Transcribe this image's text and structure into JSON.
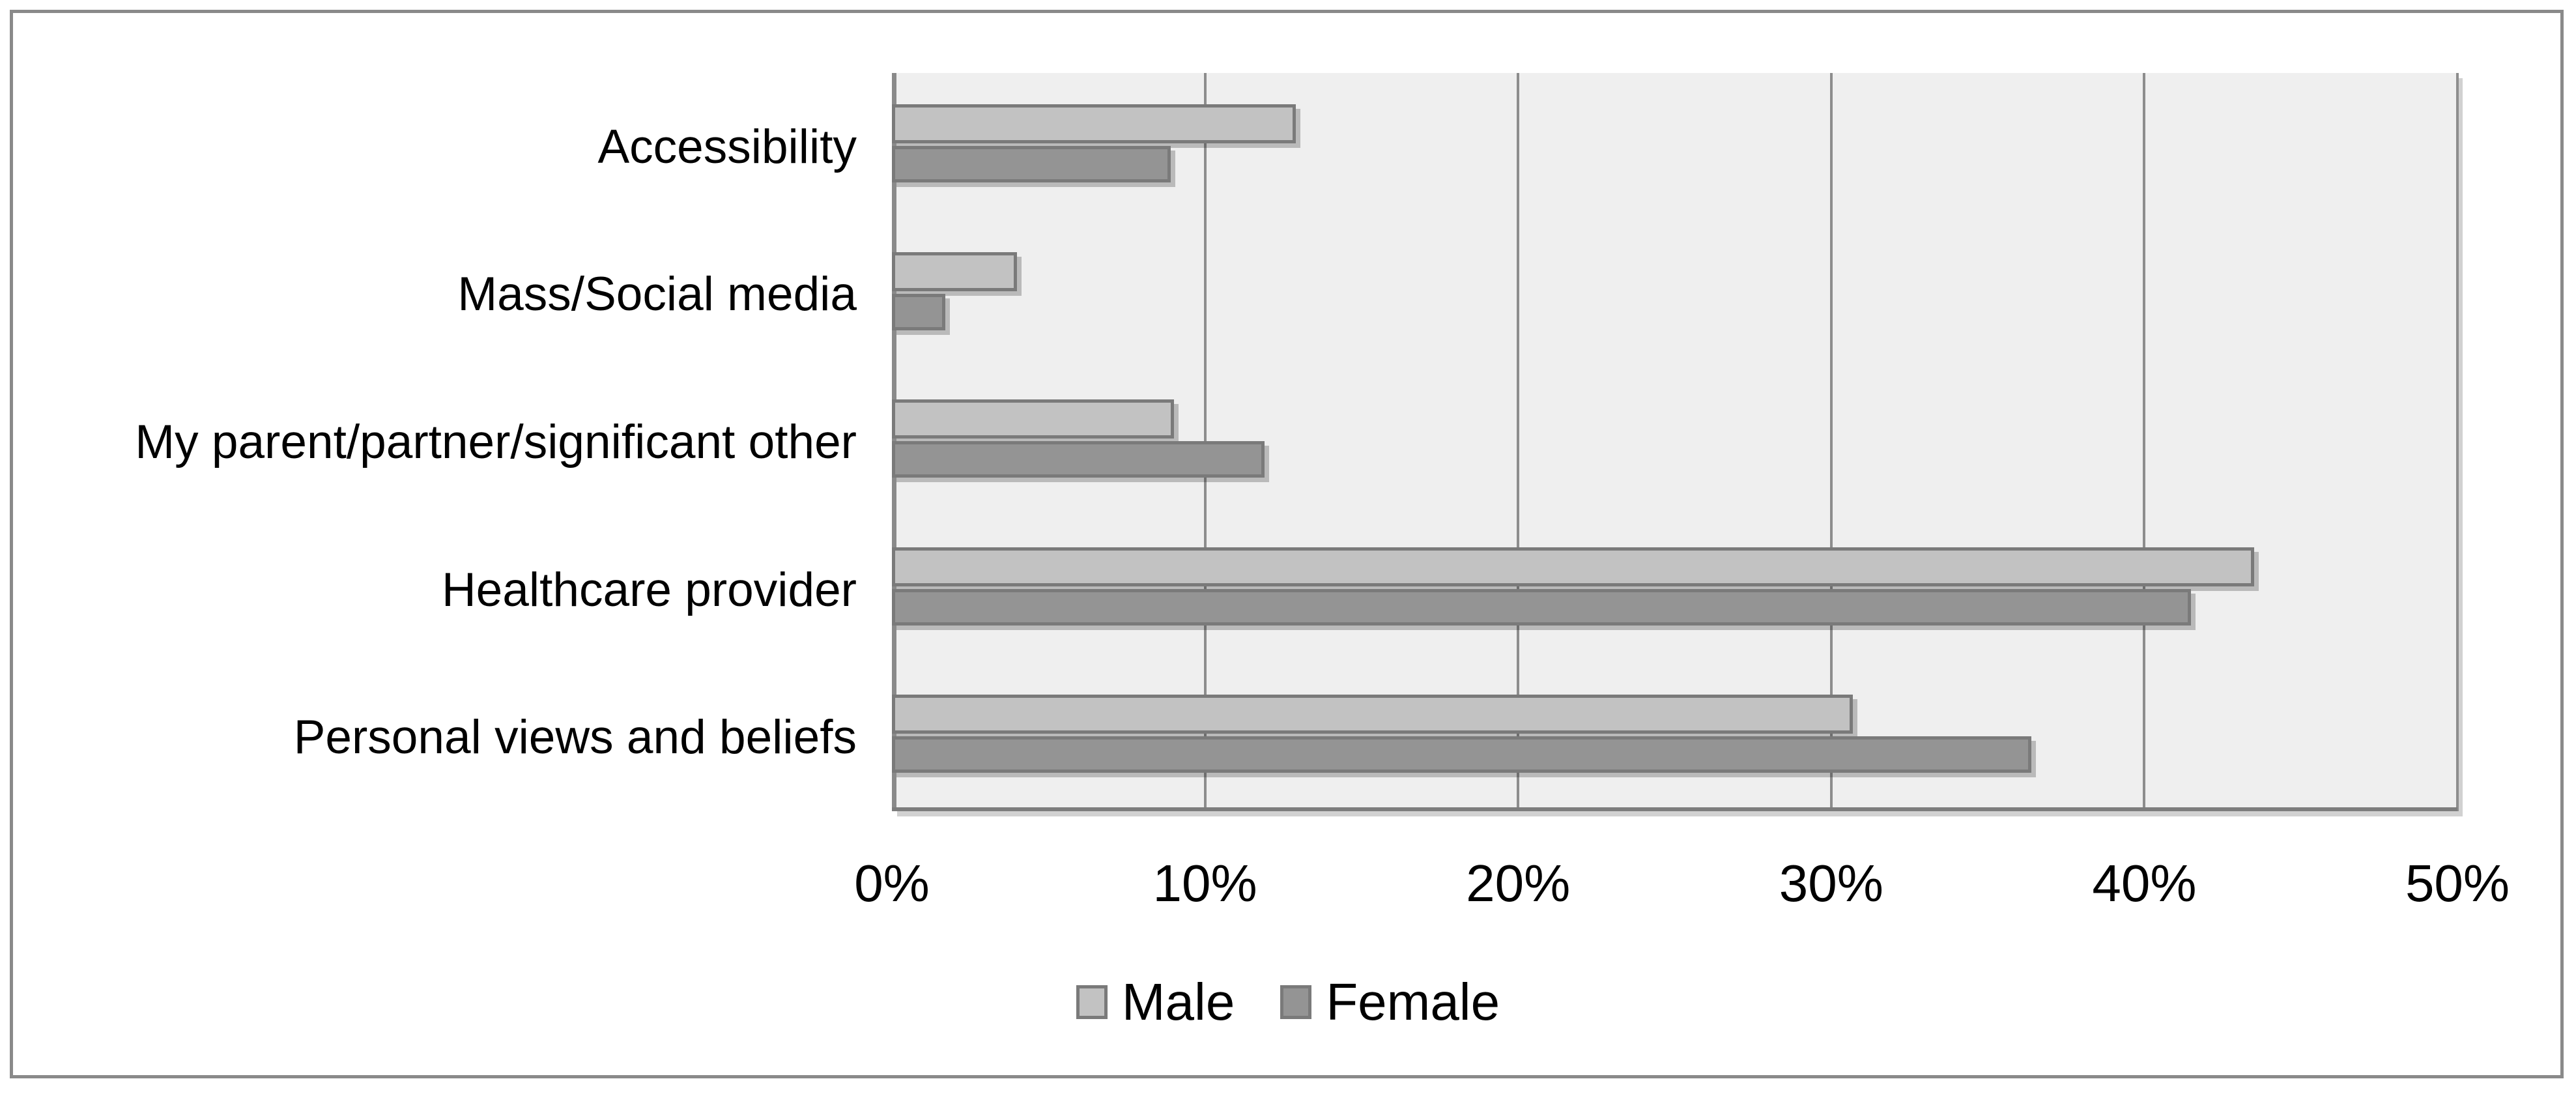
{
  "chart_data": {
    "type": "bar",
    "orientation": "horizontal",
    "title": "",
    "categories": [
      "Accessibility",
      "Mass/Social media",
      "My parent/partner/significant other",
      "Healthcare provider",
      "Personal views and beliefs"
    ],
    "series": [
      {
        "name": "Male",
        "color": "#c2c2c2",
        "values": [
          12.9,
          4.0,
          9.0,
          43.5,
          30.7
        ]
      },
      {
        "name": "Female",
        "color": "#949494",
        "values": [
          8.9,
          1.7,
          11.9,
          41.5,
          36.4
        ]
      }
    ],
    "xlim": [
      0,
      50
    ],
    "x_ticks": [
      {
        "value": 0,
        "label": "0%"
      },
      {
        "value": 10,
        "label": "10%"
      },
      {
        "value": 20,
        "label": "20%"
      },
      {
        "value": 30,
        "label": "30%"
      },
      {
        "value": 40,
        "label": "40%"
      },
      {
        "value": 50,
        "label": "50%"
      }
    ],
    "grid": "vertical-major",
    "legend_position": "bottom",
    "legend": [
      "Male",
      "Female"
    ],
    "colors": {
      "page_bg": "#ffffff",
      "frame_border": "#8a8a8a",
      "plot_bg": "#efefef",
      "gridline": "#8d8d8d",
      "axis_line": "#8a8a8a",
      "bar_border": "#7a7a7a",
      "male": "#c2c2c2",
      "female": "#949494",
      "label_text": "#000000"
    }
  }
}
